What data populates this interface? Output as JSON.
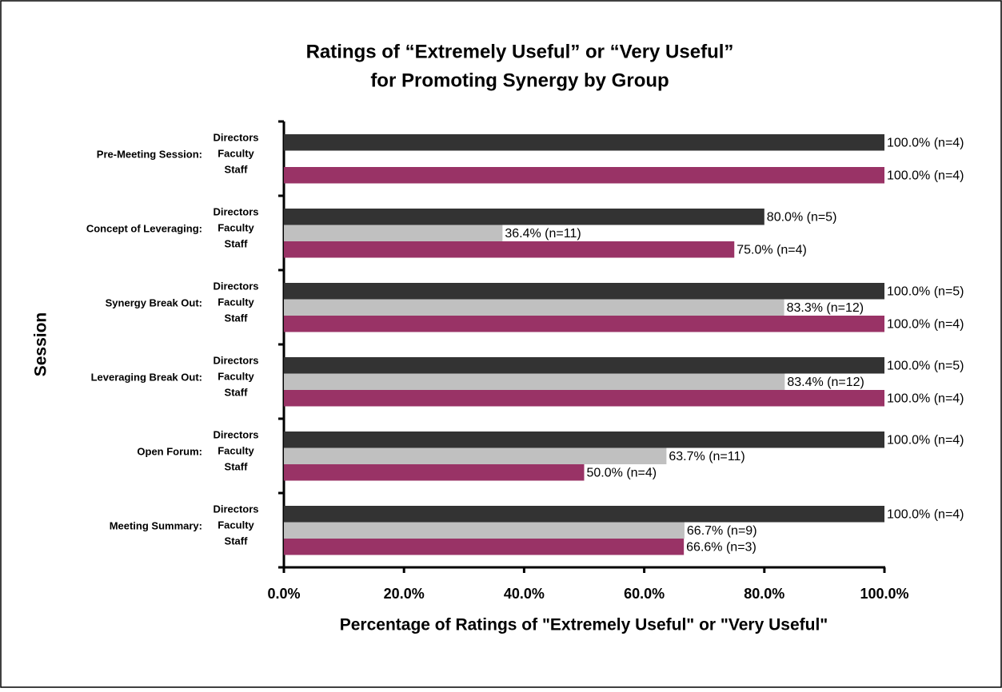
{
  "chart_data": {
    "type": "bar",
    "orientation": "horizontal",
    "title": [
      "Ratings of “Extremely Useful” or “Very Useful”",
      "for Promoting Synergy by Group"
    ],
    "x_label": "Percentage of Ratings of \"Extremely Useful\" or \"Very Useful\"",
    "y_label": "Session",
    "categories": [
      "Pre-Meeting Session:",
      "Concept of Leveraging:",
      "Synergy Break Out:",
      "Leveraging Break Out:",
      "Open Forum:",
      "Meeting Summary:"
    ],
    "series": [
      {
        "name": "Directors",
        "color": "#333333",
        "values": [
          100,
          80,
          100,
          100,
          100,
          100
        ],
        "value_labels": [
          "100.0% (n=4)",
          "80.0% (n=5)",
          "100.0% (n=5)",
          "100.0% (n=5)",
          "100.0% (n=4)",
          "100.0% (n=4)"
        ]
      },
      {
        "name": "Faculty",
        "color": "#c0c0c0",
        "values": [
          null,
          36.4,
          83.3,
          83.4,
          63.7,
          66.7
        ],
        "value_labels": [
          null,
          "36.4% (n=11)",
          "83.3% (n=12)",
          "83.4% (n=12)",
          "63.7% (n=11)",
          "66.7% (n=9)"
        ]
      },
      {
        "name": "Staff",
        "color": "#993366",
        "values": [
          100,
          75,
          100,
          100,
          50,
          66.6
        ],
        "value_labels": [
          "100.0% (n=4)",
          "75.0% (n=4)",
          "100.0% (n=4)",
          "100.0% (n=4)",
          "50.0% (n=4)",
          "66.6% (n=3)"
        ]
      }
    ],
    "xlim": [
      0,
      100
    ],
    "xticks": [
      {
        "value": 0,
        "label": "0.0%"
      },
      {
        "value": 20,
        "label": "20.0%"
      },
      {
        "value": 40,
        "label": "40.0%"
      },
      {
        "value": 60,
        "label": "60.0%"
      },
      {
        "value": 80,
        "label": "80.0%"
      },
      {
        "value": 100,
        "label": "100.0%"
      }
    ],
    "grid": false
  }
}
